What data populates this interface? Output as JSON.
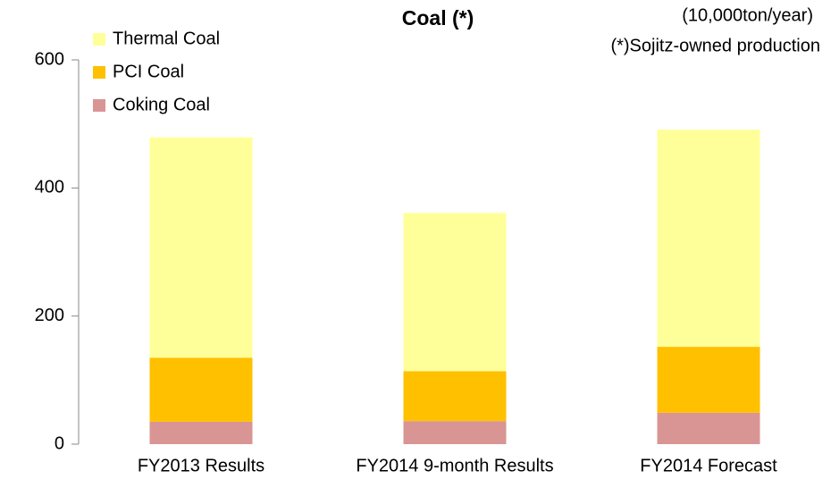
{
  "chart_data": {
    "type": "stacked_bar",
    "title": "Coal (*)",
    "unit": "(10,000ton/year)",
    "note": "(*)Sojitz-owned production",
    "categories": [
      "FY2013 Results",
      "FY2014 9-month Results",
      "FY2014 Forecast"
    ],
    "series": [
      {
        "name": "Thermal Coal",
        "color": "#FFFF99",
        "values": [
          344,
          247,
          339
        ]
      },
      {
        "name": "PCI Coal",
        "color": "#FFC000",
        "values": [
          100,
          78,
          103
        ]
      },
      {
        "name": "Coking Coal",
        "color": "#D99594",
        "values": [
          35,
          36,
          49
        ]
      }
    ],
    "ylim": [
      0,
      600
    ],
    "yticks": [
      0,
      200,
      400,
      600
    ],
    "grid": false,
    "legend": "top-left"
  }
}
